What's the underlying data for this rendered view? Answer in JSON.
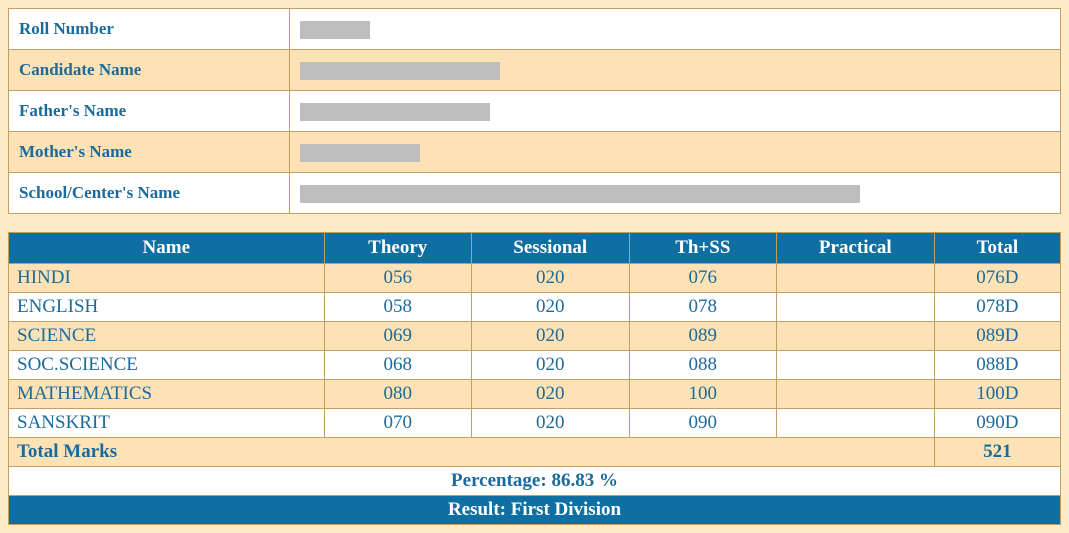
{
  "info": {
    "rows": [
      {
        "label": "Roll Number",
        "redacted_width": 70,
        "alt": false
      },
      {
        "label": "Candidate Name",
        "redacted_width": 200,
        "alt": true
      },
      {
        "label": "Father's Name",
        "redacted_width": 190,
        "alt": false
      },
      {
        "label": "Mother's Name",
        "redacted_width": 120,
        "alt": true
      },
      {
        "label": "School/Center's Name",
        "redacted_width": 560,
        "alt": false
      }
    ]
  },
  "marks": {
    "headers": [
      "Name",
      "Theory",
      "Sessional",
      "Th+SS",
      "Practical",
      "Total"
    ],
    "col_widths_pct": [
      30,
      14,
      15,
      14,
      15,
      12
    ],
    "rows": [
      {
        "subject": "HINDI",
        "theory": "056",
        "sessional": "020",
        "thss": "076",
        "practical": "",
        "total": "076D",
        "alt": true
      },
      {
        "subject": "ENGLISH",
        "theory": "058",
        "sessional": "020",
        "thss": "078",
        "practical": "",
        "total": "078D",
        "alt": false
      },
      {
        "subject": "SCIENCE",
        "theory": "069",
        "sessional": "020",
        "thss": "089",
        "practical": "",
        "total": "089D",
        "alt": true
      },
      {
        "subject": "SOC.SCIENCE",
        "theory": "068",
        "sessional": "020",
        "thss": "088",
        "practical": "",
        "total": "088D",
        "alt": false
      },
      {
        "subject": "MATHEMATICS",
        "theory": "080",
        "sessional": "020",
        "thss": "100",
        "practical": "",
        "total": "100D",
        "alt": true
      },
      {
        "subject": "SANSKRIT",
        "theory": "070",
        "sessional": "020",
        "thss": "090",
        "practical": "",
        "total": "090D",
        "alt": false
      }
    ],
    "total_marks_label": "Total Marks",
    "total_marks_value": "521",
    "percentage_text": "Percentage: 86.83 %",
    "result_text": "Result: First Division"
  }
}
